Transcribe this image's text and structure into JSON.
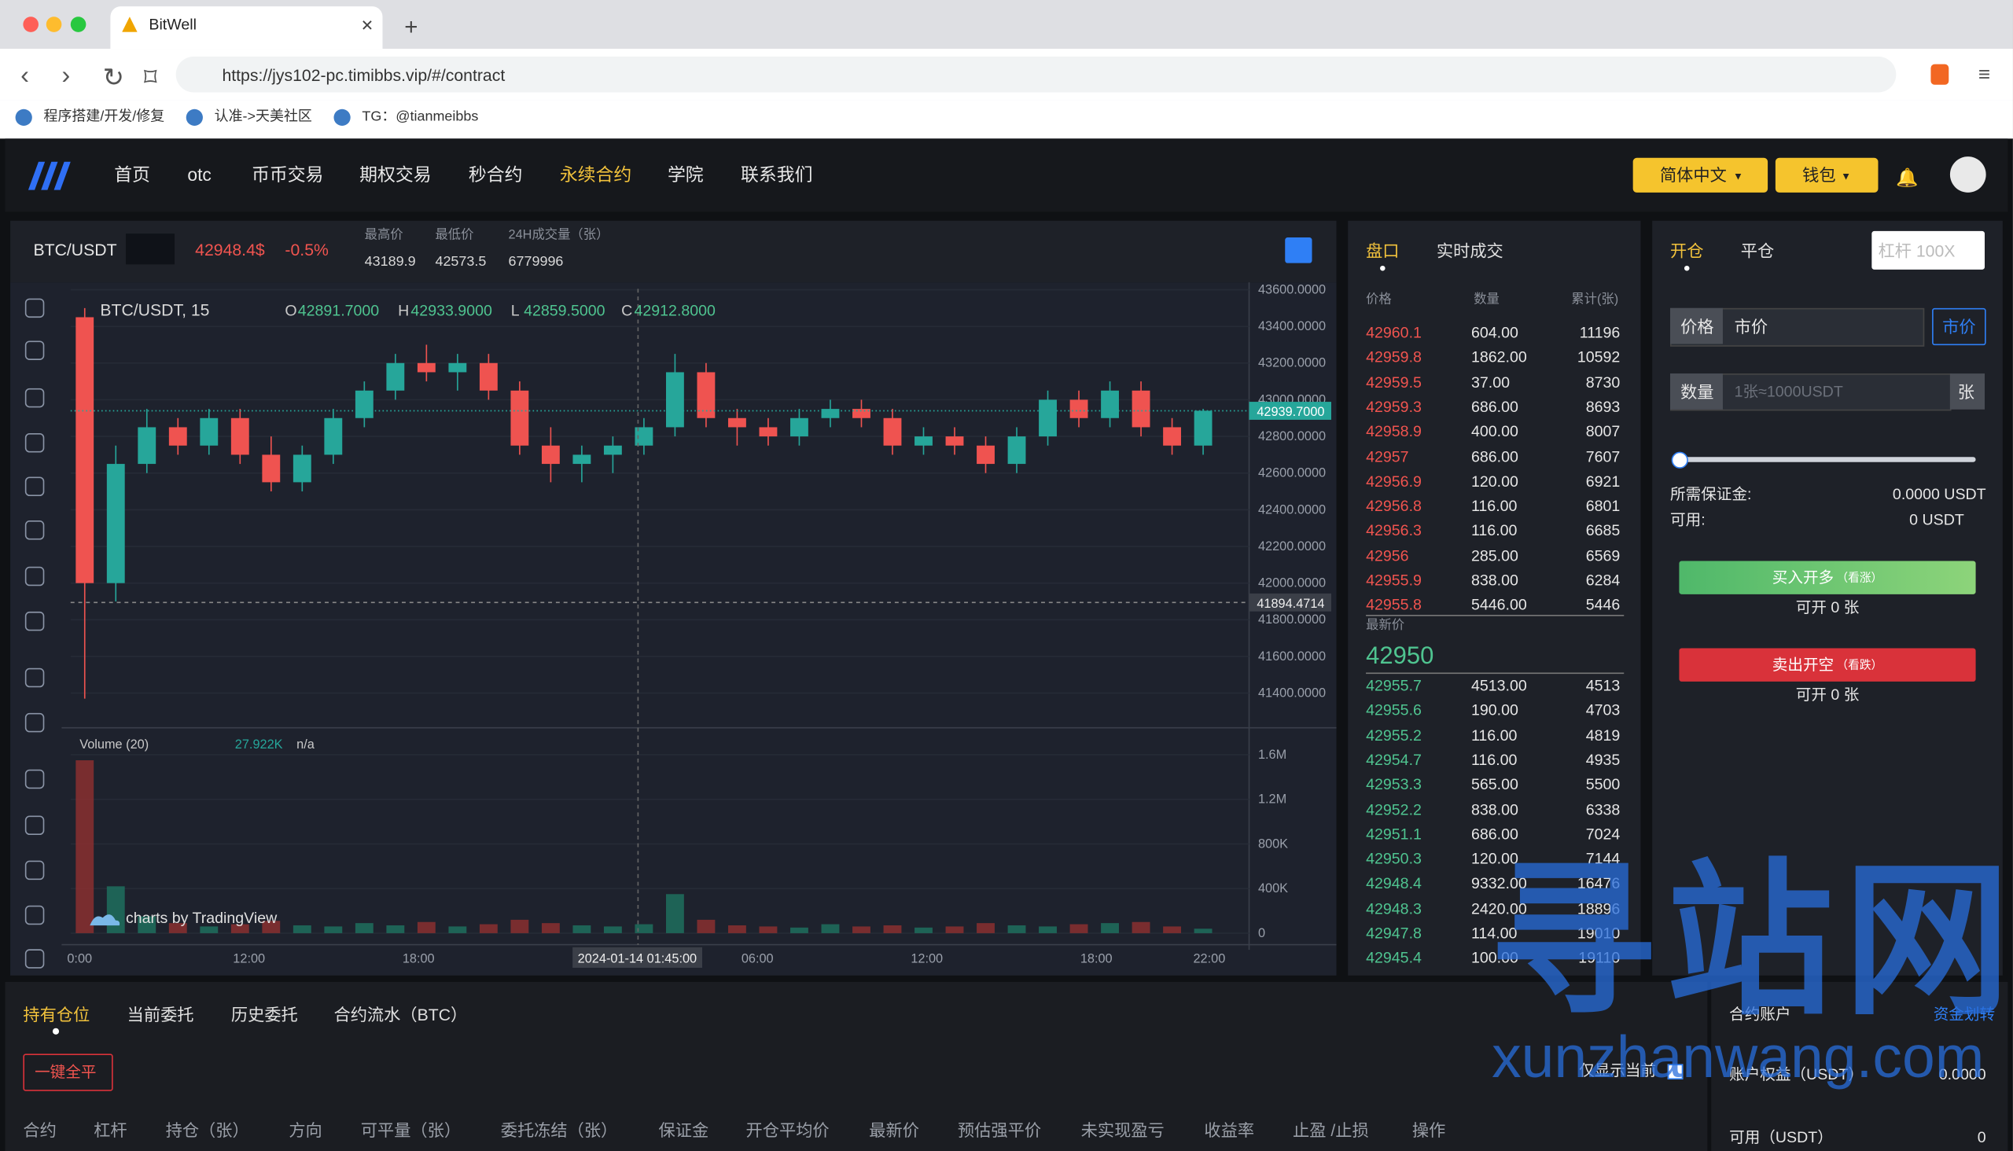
{
  "browser": {
    "tab_title": "BitWell",
    "url": "https://jys102-pc.timibbs.vip/#/contract",
    "bookmarks": [
      "程序搭建/开发/修复",
      "认准->天美社区",
      "TG：@tianmeibbs"
    ]
  },
  "nav": {
    "items": [
      "首页",
      "otc",
      "币币交易",
      "期权交易",
      "秒合约",
      "永续合约",
      "学院",
      "联系我们"
    ],
    "active": 5,
    "language": "简体中文",
    "wallet": "钱包"
  },
  "ticker": {
    "symbol": "BTC/USDT",
    "price": "42948.4$",
    "change": "-0.5%",
    "stats": [
      {
        "label": "最高价",
        "value": "43189.9"
      },
      {
        "label": "最低价",
        "value": "42573.5"
      },
      {
        "label": "24H成交量（张）",
        "value": "6779996"
      }
    ]
  },
  "chart": {
    "title": "BTC/USDT, 15",
    "ohlc": [
      {
        "key": "O",
        "value": "42891.7000"
      },
      {
        "key": "H",
        "value": "42933.9000"
      },
      {
        "key": "L",
        "value": "42859.5000"
      },
      {
        "key": "C",
        "value": "42912.8000"
      }
    ],
    "ylim": [
      41225,
      43640
    ],
    "price_ticks": [
      {
        "value": 43600,
        "label": "43600.0000"
      },
      {
        "value": 43400,
        "label": "43400.0000"
      },
      {
        "value": 43200,
        "label": "43200.0000"
      },
      {
        "value": 43000,
        "label": "43000.0000"
      },
      {
        "value": 42800,
        "label": "42800.0000"
      },
      {
        "value": 42600,
        "label": "42600.0000"
      },
      {
        "value": 42400,
        "label": "42400.0000"
      },
      {
        "value": 42200,
        "label": "42200.0000"
      },
      {
        "value": 42000,
        "label": "42000.0000"
      },
      {
        "value": 41800,
        "label": "41800.0000"
      },
      {
        "value": 41600,
        "label": "41600.0000"
      },
      {
        "value": 41400,
        "label": "41400.0000"
      }
    ],
    "candles": [
      [
        43450,
        43500,
        41370,
        42000
      ],
      [
        42000,
        42750,
        41900,
        42650
      ],
      [
        42650,
        42950,
        42600,
        42850
      ],
      [
        42850,
        42900,
        42700,
        42750
      ],
      [
        42750,
        42950,
        42700,
        42900
      ],
      [
        42900,
        42950,
        42650,
        42700
      ],
      [
        42700,
        42800,
        42500,
        42550
      ],
      [
        42550,
        42750,
        42500,
        42700
      ],
      [
        42700,
        42950,
        42650,
        42900
      ],
      [
        42900,
        43100,
        42850,
        43050
      ],
      [
        43050,
        43250,
        43000,
        43200
      ],
      [
        43200,
        43300,
        43100,
        43150
      ],
      [
        43150,
        43250,
        43050,
        43200
      ],
      [
        43200,
        43250,
        43000,
        43050
      ],
      [
        43050,
        43100,
        42700,
        42750
      ],
      [
        42750,
        42850,
        42550,
        42650
      ],
      [
        42650,
        42750,
        42550,
        42700
      ],
      [
        42700,
        42800,
        42600,
        42750
      ],
      [
        42750,
        42900,
        42700,
        42850
      ],
      [
        42850,
        43250,
        42800,
        43150
      ],
      [
        43150,
        43200,
        42850,
        42900
      ],
      [
        42900,
        42950,
        42750,
        42850
      ],
      [
        42850,
        42900,
        42750,
        42800
      ],
      [
        42800,
        42950,
        42750,
        42900
      ],
      [
        42900,
        43000,
        42850,
        42950
      ],
      [
        42950,
        43000,
        42850,
        42900
      ],
      [
        42900,
        42950,
        42700,
        42750
      ],
      [
        42750,
        42850,
        42700,
        42800
      ],
      [
        42800,
        42850,
        42700,
        42750
      ],
      [
        42750,
        42800,
        42600,
        42650
      ],
      [
        42650,
        42850,
        42600,
        42800
      ],
      [
        42800,
        43050,
        42750,
        43000
      ],
      [
        43000,
        43050,
        42850,
        42900
      ],
      [
        42900,
        43100,
        42850,
        43050
      ],
      [
        43050,
        43100,
        42800,
        42850
      ],
      [
        42850,
        42900,
        42700,
        42750
      ],
      [
        42750,
        42950,
        42700,
        42940
      ]
    ],
    "last_price": {
      "value": 42939.7,
      "label": "42939.7000"
    },
    "crosshair": {
      "value": 41894.4714,
      "label": "41894.4714",
      "time": "2024-01-14 01:45:00"
    },
    "time_labels": [
      "0:00",
      "12:00",
      "18:00",
      "06:00",
      "12:00",
      "18:00",
      "22:00"
    ],
    "volume": {
      "title": "Volume (20)",
      "last": "27.922K",
      "ma": "n/a",
      "ylim": [
        -92000,
        1807000
      ],
      "ticks": [
        {
          "value": 1600000,
          "label": "1.6M"
        },
        {
          "value": 1200000,
          "label": "1.2M"
        },
        {
          "value": 800000,
          "label": "800K"
        },
        {
          "value": 400000,
          "label": "400K"
        },
        0
      ],
      "values": [
        1550000,
        420000,
        150000,
        90000,
        60000,
        80000,
        110000,
        70000,
        60000,
        90000,
        70000,
        100000,
        60000,
        80000,
        120000,
        90000,
        70000,
        60000,
        80000,
        350000,
        120000,
        70000,
        60000,
        50000,
        80000,
        60000,
        70000,
        50000,
        60000,
        90000,
        70000,
        60000,
        80000,
        90000,
        100000,
        60000,
        40000
      ]
    },
    "attribution": "charts by TradingView"
  },
  "orderbook": {
    "tabs": [
      "盘口",
      "实时成交"
    ],
    "headers": [
      "价格",
      "数量",
      "累计(张)"
    ],
    "asks": [
      [
        "42960.1",
        "604.00",
        "11196"
      ],
      [
        "42959.8",
        "1862.00",
        "10592"
      ],
      [
        "42959.5",
        "37.00",
        "8730"
      ],
      [
        "42959.3",
        "686.00",
        "8693"
      ],
      [
        "42958.9",
        "400.00",
        "8007"
      ],
      [
        "42957",
        "686.00",
        "7607"
      ],
      [
        "42956.9",
        "120.00",
        "6921"
      ],
      [
        "42956.8",
        "116.00",
        "6801"
      ],
      [
        "42956.3",
        "116.00",
        "6685"
      ],
      [
        "42956",
        "285.00",
        "6569"
      ],
      [
        "42955.9",
        "838.00",
        "6284"
      ],
      [
        "42955.8",
        "5446.00",
        "5446"
      ]
    ],
    "latest_label": "最新价",
    "latest": "42950",
    "bids": [
      [
        "42955.7",
        "4513.00",
        "4513"
      ],
      [
        "42955.6",
        "190.00",
        "4703"
      ],
      [
        "42955.2",
        "116.00",
        "4819"
      ],
      [
        "42954.7",
        "116.00",
        "4935"
      ],
      [
        "42953.3",
        "565.00",
        "5500"
      ],
      [
        "42952.2",
        "838.00",
        "6338"
      ],
      [
        "42951.1",
        "686.00",
        "7024"
      ],
      [
        "42950.3",
        "120.00",
        "7144"
      ],
      [
        "42948.4",
        "9332.00",
        "16476"
      ],
      [
        "42948.3",
        "2420.00",
        "18896"
      ],
      [
        "42947.8",
        "114.00",
        "19010"
      ],
      [
        "42945.4",
        "100.00",
        "19110"
      ]
    ]
  },
  "trade": {
    "tabs": [
      "开仓",
      "平仓"
    ],
    "leverage_placeholder": "杠杆 100X",
    "price_label": "价格",
    "price_value": "市价",
    "price_button": "市价",
    "qty_label": "数量",
    "qty_placeholder": "1张≈1000USDT",
    "qty_unit": "张",
    "margin_label": "所需保证金:",
    "margin_value": "0.0000 USDT",
    "available_label": "可用:",
    "available_value": "0 USDT",
    "buy": "买入开多",
    "buy_hint": "（看涨）",
    "buy_avail": "可开 0 张",
    "sell": "卖出开空",
    "sell_hint": "（看跌）",
    "sell_avail": "可开 0 张"
  },
  "positions": {
    "tabs": [
      "持有仓位",
      "当前委托",
      "历史委托",
      "合约流水（BTC）"
    ],
    "active": 0,
    "close_all": "一键全平",
    "only_current": "仅显示当前",
    "columns": [
      "合约",
      "杠杆",
      "持仓（张）",
      "方向",
      "可平量（张）",
      "委托冻结（张）",
      "保证金",
      "开仓平均价",
      "最新价",
      "预估强平价",
      "未实现盈亏",
      "收益率",
      "止盈 /止损",
      "操作"
    ]
  },
  "account": {
    "title": "合约账户",
    "transfer": "资金划转",
    "equity_label": "账户权益（USDT）",
    "equity": "0.0000",
    "available_label": "可用（USDT）",
    "available": "0"
  },
  "watermark": {
    "title": "寻站网",
    "domain": "xunzhanwang.com"
  }
}
